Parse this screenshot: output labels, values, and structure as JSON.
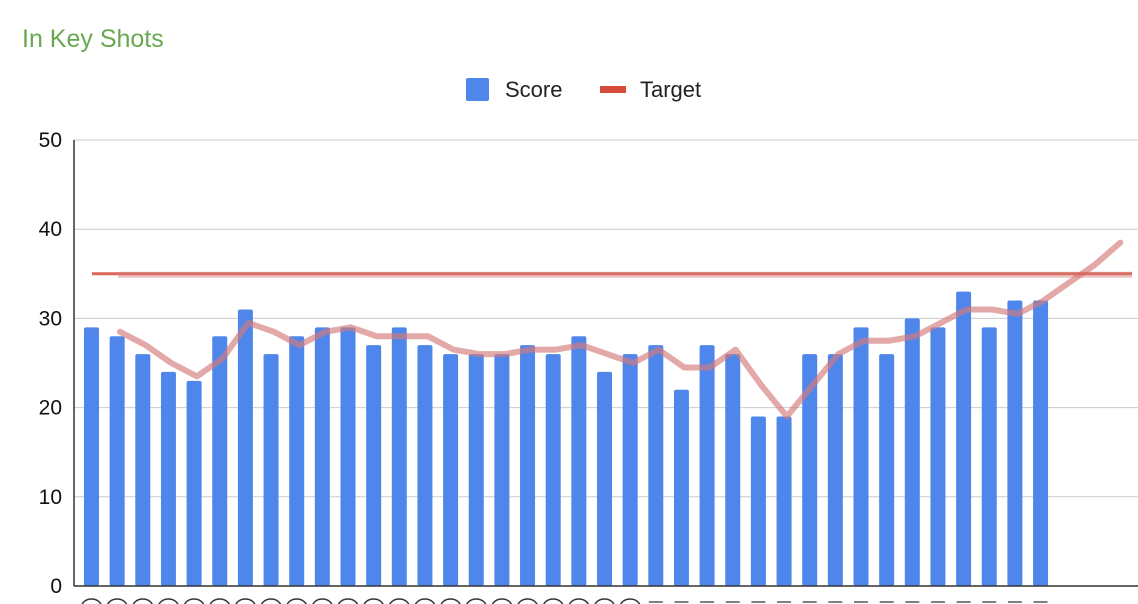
{
  "chart_data": {
    "type": "bar",
    "title": "In Key Shots",
    "xlabel": "",
    "ylabel": "",
    "ylim": [
      0,
      50
    ],
    "yticks": [
      "0",
      "10",
      "20",
      "30",
      "40",
      "50"
    ],
    "grid": true,
    "legend_position": "top-center",
    "series": [
      {
        "name": "Score",
        "type": "bar",
        "values": [
          29,
          28,
          26,
          24,
          23,
          28,
          31,
          26,
          28,
          29,
          29,
          27,
          29,
          27,
          26,
          26,
          26,
          27,
          26,
          28,
          24,
          26,
          27,
          22,
          27,
          26,
          19,
          19,
          26,
          26,
          29,
          26,
          30,
          29,
          33,
          29,
          32,
          32
        ]
      },
      {
        "name": "Target",
        "type": "line",
        "value": 35
      }
    ],
    "trend": {
      "values": [
        28.5,
        27,
        25,
        23.5,
        25.5,
        29.5,
        28.5,
        27,
        28.5,
        29,
        28,
        28,
        28,
        26.5,
        26,
        26,
        26.5,
        26.5,
        27,
        26,
        25,
        26.5,
        24.5,
        24.5,
        26.5,
        22.5,
        19,
        22.5,
        26,
        27.5,
        27.5,
        28,
        29.5,
        31,
        31,
        30.5,
        32,
        34,
        36,
        38.5
      ]
    },
    "colors": {
      "title": "#6aa84f",
      "bar": "#4f86ec",
      "target": "#d64c3b",
      "trend": "#d47a7a",
      "grid": "#cccccc",
      "axis": "#333333"
    }
  }
}
